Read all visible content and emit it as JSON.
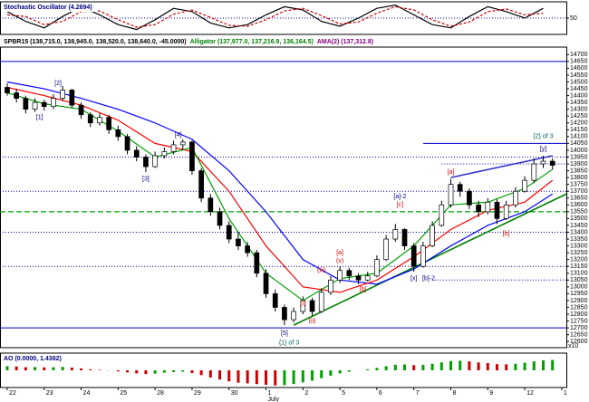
{
  "chart_data": [
    {
      "type": "line",
      "title": "Stochastic Oscillator (4.2694)",
      "xlim": [
        -0.78,
        60.5
      ],
      "ylim": [
        0,
        100
      ],
      "yticks": [
        50
      ],
      "grid": true,
      "series": [
        {
          "color": "#000000",
          "x": [
            0,
            2,
            4,
            6,
            8,
            10,
            12,
            14,
            16,
            18,
            20,
            22,
            24,
            26,
            28,
            30,
            32,
            34,
            36,
            38,
            40,
            42,
            44,
            46,
            48,
            50,
            52,
            54,
            56,
            58
          ],
          "values": [
            70,
            40,
            20,
            55,
            85,
            60,
            30,
            15,
            45,
            80,
            70,
            35,
            20,
            30,
            60,
            85,
            75,
            40,
            25,
            50,
            80,
            90,
            60,
            30,
            20,
            55,
            85,
            70,
            50,
            80
          ]
        },
        {
          "color": "#cc0000",
          "dash": true,
          "x": [
            0,
            2,
            4,
            6,
            8,
            10,
            12,
            14,
            16,
            18,
            20,
            22,
            24,
            26,
            28,
            30,
            32,
            34,
            36,
            38,
            40,
            42,
            44,
            46,
            48,
            50,
            52,
            54,
            56,
            58
          ],
          "values": [
            60,
            55,
            30,
            40,
            70,
            72,
            45,
            22,
            30,
            62,
            75,
            52,
            28,
            25,
            45,
            72,
            80,
            58,
            32,
            38,
            65,
            85,
            75,
            45,
            25,
            38,
            70,
            78,
            60,
            65
          ]
        }
      ]
    },
    {
      "type": "candlestick",
      "title": "SPBR15 (138,715.0, 138,945.0, 138,520.0, 138,640.0, -45.0000)",
      "legend_texts": [
        {
          "text": "Alligator (137,977.0, 137,216.9, 136,164.5)",
          "color": "#008000"
        },
        {
          "text": "AMA(2) (137,312.8)",
          "color": "#800080"
        }
      ],
      "axis_note": "x10",
      "xlim": [
        -0.78,
        60.5
      ],
      "ylim": [
        12555,
        14755
      ],
      "yticks": [
        12600,
        12650,
        12700,
        12750,
        12800,
        12850,
        12900,
        12950,
        13000,
        13050,
        13100,
        13150,
        13200,
        13250,
        13300,
        13350,
        13400,
        13450,
        13500,
        13550,
        13600,
        13650,
        13700,
        13750,
        13800,
        13850,
        13900,
        13950,
        14000,
        14050,
        14100,
        14150,
        14200,
        14250,
        14300,
        14350,
        14400,
        14450,
        14500,
        14550,
        14600,
        14650,
        14700
      ],
      "up_color": "#ffffff",
      "down_color": "#000000",
      "bars": [
        [
          14460,
          14490,
          14400,
          14420
        ],
        [
          14420,
          14450,
          14350,
          14380
        ],
        [
          14380,
          14400,
          14270,
          14300
        ],
        [
          14300,
          14380,
          14280,
          14350
        ],
        [
          14350,
          14370,
          14290,
          14320
        ],
        [
          14320,
          14410,
          14300,
          14380
        ],
        [
          14380,
          14470,
          14360,
          14440
        ],
        [
          14440,
          14450,
          14310,
          14330
        ],
        [
          14330,
          14350,
          14230,
          14260
        ],
        [
          14260,
          14280,
          14170,
          14200
        ],
        [
          14200,
          14270,
          14180,
          14240
        ],
        [
          14240,
          14260,
          14120,
          14150
        ],
        [
          14150,
          14180,
          14070,
          14100
        ],
        [
          14100,
          14120,
          13970,
          14000
        ],
        [
          14000,
          14030,
          13920,
          13950
        ],
        [
          13950,
          13970,
          13840,
          13880
        ],
        [
          13880,
          13990,
          13870,
          13960
        ],
        [
          13960,
          14020,
          13940,
          13990
        ],
        [
          13990,
          14070,
          13970,
          14040
        ],
        [
          14040,
          14080,
          14000,
          14060
        ],
        [
          14060,
          14070,
          13820,
          13850
        ],
        [
          13850,
          13870,
          13620,
          13650
        ],
        [
          13650,
          13680,
          13520,
          13550
        ],
        [
          13550,
          13580,
          13420,
          13450
        ],
        [
          13450,
          13480,
          13320,
          13350
        ],
        [
          13350,
          13400,
          13270,
          13300
        ],
        [
          13300,
          13330,
          13220,
          13250
        ],
        [
          13250,
          13270,
          13070,
          13100
        ],
        [
          13100,
          13130,
          12920,
          12950
        ],
        [
          12950,
          12980,
          12820,
          12850
        ],
        [
          12850,
          12870,
          12720,
          12760
        ],
        [
          12760,
          12850,
          12740,
          12820
        ],
        [
          12820,
          12930,
          12800,
          12900
        ],
        [
          12900,
          12920,
          12790,
          12820
        ],
        [
          12820,
          12990,
          12810,
          12960
        ],
        [
          12960,
          13080,
          12940,
          13050
        ],
        [
          13050,
          13150,
          13030,
          13120
        ],
        [
          13120,
          13140,
          13050,
          13080
        ],
        [
          13080,
          13100,
          13020,
          13050
        ],
        [
          13050,
          13110,
          13040,
          13080
        ],
        [
          13080,
          13230,
          13070,
          13200
        ],
        [
          13200,
          13380,
          13190,
          13350
        ],
        [
          13350,
          13460,
          13330,
          13420
        ],
        [
          13420,
          13430,
          13270,
          13300
        ],
        [
          13300,
          13320,
          13110,
          13150
        ],
        [
          13150,
          13330,
          13140,
          13300
        ],
        [
          13300,
          13480,
          13290,
          13450
        ],
        [
          13450,
          13630,
          13440,
          13600
        ],
        [
          13600,
          13790,
          13580,
          13750
        ],
        [
          13750,
          13770,
          13660,
          13700
        ],
        [
          13700,
          13720,
          13570,
          13600
        ],
        [
          13600,
          13630,
          13510,
          13550
        ],
        [
          13550,
          13650,
          13530,
          13620
        ],
        [
          13620,
          13640,
          13460,
          13500
        ],
        [
          13500,
          13630,
          13490,
          13600
        ],
        [
          13600,
          13730,
          13580,
          13700
        ],
        [
          13700,
          13810,
          13690,
          13780
        ],
        [
          13780,
          13940,
          13760,
          13900
        ],
        [
          13900,
          13960,
          13870,
          13920
        ],
        [
          13920,
          13940,
          13860,
          13890
        ]
      ],
      "series": [
        {
          "color": "#0000ff",
          "x": [
            0,
            4,
            8,
            12,
            16,
            20,
            24,
            28,
            32,
            36,
            40,
            44,
            48,
            52,
            56,
            59
          ],
          "values": [
            14500,
            14450,
            14380,
            14300,
            14200,
            14080,
            13850,
            13550,
            13200,
            13050,
            13020,
            13130,
            13300,
            13450,
            13550,
            13680
          ]
        },
        {
          "color": "#ff0000",
          "x": [
            0,
            4,
            8,
            12,
            16,
            20,
            24,
            28,
            32,
            36,
            40,
            44,
            48,
            52,
            56,
            59
          ],
          "values": [
            14460,
            14400,
            14330,
            14220,
            14050,
            13990,
            13700,
            13300,
            13000,
            12960,
            13050,
            13220,
            13420,
            13560,
            13620,
            13780
          ]
        },
        {
          "color": "#00a000",
          "x": [
            0,
            4,
            8,
            12,
            16,
            20,
            24,
            28,
            32,
            36,
            40,
            44,
            48,
            52,
            56,
            59
          ],
          "values": [
            14420,
            14340,
            14300,
            14140,
            13950,
            14020,
            13500,
            13100,
            12900,
            13060,
            13100,
            13300,
            13600,
            13620,
            13720,
            13860
          ]
        }
      ],
      "levels": [
        {
          "value": 14650,
          "color": "#0000cc",
          "style": "solid",
          "from": -0.78
        },
        {
          "value": 14050,
          "color": "#0000cc",
          "style": "solid",
          "from": 45
        },
        {
          "value": 13950,
          "color": "#0000cc",
          "style": "dotted",
          "from": -0.78
        },
        {
          "value": 13900,
          "color": "#0000cc",
          "style": "dotted",
          "from": 47
        },
        {
          "value": 13700,
          "color": "#0000cc",
          "style": "dotted",
          "from": -0.78
        },
        {
          "value": 13550,
          "color": "#00a000",
          "style": "dashed",
          "from": -0.78
        },
        {
          "value": 13400,
          "color": "#0000cc",
          "style": "dotted",
          "from": -0.78
        },
        {
          "value": 13150,
          "color": "#0000cc",
          "style": "dotted",
          "from": -0.78
        },
        {
          "value": 13050,
          "color": "#0000cc",
          "style": "dotted",
          "from": 46
        },
        {
          "value": 12700,
          "color": "#0000cc",
          "style": "solid",
          "from": -0.78
        }
      ],
      "trendlines": [
        {
          "x": [
            31,
            60.5
          ],
          "y": [
            12720,
            13680
          ],
          "color": "#008000"
        },
        {
          "x": [
            48,
            59
          ],
          "y": [
            13800,
            13960
          ],
          "color": "#3333cc"
        }
      ],
      "annotations": [
        {
          "text": "[1]",
          "x": 3.5,
          "y": 14240,
          "color": "#000080"
        },
        {
          "text": "[2]",
          "x": 5.5,
          "y": 14490,
          "color": "#000080"
        },
        {
          "text": "[3]",
          "x": 15,
          "y": 13790,
          "color": "#000080"
        },
        {
          "text": "[4]",
          "x": 18.5,
          "y": 14110,
          "color": "#000080"
        },
        {
          "text": "[5]",
          "x": 30,
          "y": 12660,
          "color": "#000080"
        },
        {
          "text": "{1} of 3",
          "x": 30.5,
          "y": 12590,
          "color": "#006060"
        },
        {
          "text": "(i)",
          "x": 32,
          "y": 12880,
          "color": "#cc0000"
        },
        {
          "text": "(ii)",
          "x": 33,
          "y": 12750,
          "color": "#cc0000"
        },
        {
          "text": "(iii)",
          "x": 34,
          "y": 13120,
          "color": "#cc0000"
        },
        {
          "text": "(v)",
          "x": 36,
          "y": 13190,
          "color": "#cc0000"
        },
        {
          "text": "[a]",
          "x": 36,
          "y": 13250,
          "color": "#cc0000"
        },
        {
          "text": "[b]",
          "x": 38.5,
          "y": 12980,
          "color": "#cc0000"
        },
        {
          "text": "[a]-2",
          "x": 42.5,
          "y": 13660,
          "color": "#000080"
        },
        {
          "text": "[c]",
          "x": 42.5,
          "y": 13600,
          "color": "#cc0000"
        },
        {
          "text": "[x]",
          "x": 44,
          "y": 13060,
          "color": "#000080"
        },
        {
          "text": "[b]-2",
          "x": 45.6,
          "y": 13060,
          "color": "#000080"
        },
        {
          "text": "[a]",
          "x": 48,
          "y": 13840,
          "color": "#cc0000"
        },
        {
          "text": "[b]",
          "x": 54,
          "y": 13390,
          "color": "#cc0000"
        },
        {
          "text": "[y]",
          "x": 58,
          "y": 14010,
          "color": "#000080"
        },
        {
          "text": "{2} of 3",
          "x": 58,
          "y": 14100,
          "color": "#006060"
        }
      ]
    },
    {
      "type": "bar",
      "title": "AO (0.0000, 1.4382)",
      "xlim": [
        -0.78,
        60.5
      ],
      "ylim": [
        -500,
        500
      ],
      "up_color": "#00a000",
      "down_color": "#cc0000",
      "values": [
        120,
        110,
        90,
        95,
        85,
        90,
        100,
        80,
        55,
        30,
        15,
        -5,
        -30,
        -60,
        -90,
        -110,
        -95,
        -70,
        -50,
        -40,
        -80,
        -140,
        -210,
        -270,
        -320,
        -360,
        -380,
        -400,
        -420,
        -440,
        -430,
        -400,
        -350,
        -300,
        -230,
        -160,
        -90,
        -40,
        0,
        30,
        70,
        120,
        160,
        170,
        150,
        160,
        190,
        230,
        270,
        280,
        260,
        230,
        210,
        180,
        175,
        190,
        220,
        260,
        290,
        300
      ],
      "x_labels": [
        {
          "value": 0,
          "label": "22"
        },
        {
          "value": 4,
          "label": "23"
        },
        {
          "value": 8,
          "label": "24"
        },
        {
          "value": 12,
          "label": "25"
        },
        {
          "value": 16,
          "label": "28"
        },
        {
          "value": 20,
          "label": "29"
        },
        {
          "value": 24,
          "label": "30"
        },
        {
          "value": 28,
          "label": "1"
        },
        {
          "value": 32,
          "label": "2"
        },
        {
          "value": 36,
          "label": "5"
        },
        {
          "value": 40,
          "label": "6"
        },
        {
          "value": 44,
          "label": "7"
        },
        {
          "value": 48,
          "label": "8"
        },
        {
          "value": 52,
          "label": "9"
        },
        {
          "value": 56,
          "label": "12"
        },
        {
          "value": 60,
          "label": "1"
        }
      ],
      "x_sublabels": [
        {
          "value": 28,
          "label": "July"
        }
      ]
    }
  ]
}
